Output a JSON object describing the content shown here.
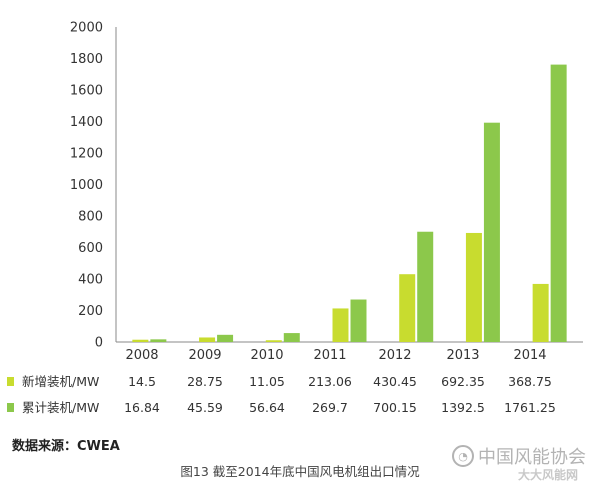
{
  "chart_data": {
    "type": "bar",
    "title": "图13 截至2014年底中国风电机组出口情况",
    "ylim": [
      0,
      2000
    ],
    "yticks": [
      0,
      200,
      400,
      600,
      800,
      1000,
      1200,
      1400,
      1600,
      1800,
      2000
    ],
    "categories": [
      "2008",
      "2009",
      "2010",
      "2011",
      "2012",
      "2013",
      "2014"
    ],
    "series": [
      {
        "name": "新增装机/MW",
        "color": "#c8dc2f",
        "values": [
          14.5,
          28.75,
          11.05,
          213.06,
          430.45,
          692.35,
          368.75
        ],
        "labels": [
          "14.5",
          "28.75",
          "11.05",
          "213.06",
          "430.45",
          "692.35",
          "368.75"
        ]
      },
      {
        "name": "累计装机/MW",
        "color": "#8cc84b",
        "values": [
          16.84,
          45.59,
          56.64,
          269.7,
          700.15,
          1392.5,
          1761.25
        ],
        "labels": [
          "16.84",
          "45.59",
          "56.64",
          "269.7",
          "700.15",
          "1392.5",
          "1761.25"
        ]
      }
    ]
  },
  "source": "数据来源：CWEA",
  "caption": "图13 截至2014年底中国风电机组出口情况",
  "watermark": {
    "icon": "wechat-icon",
    "text": "中国风能协会",
    "secondary": "大大风能网"
  }
}
